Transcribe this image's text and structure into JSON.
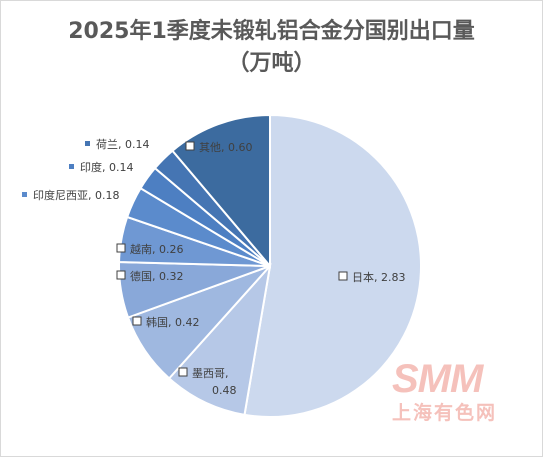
{
  "title_line1": "2025年1季度未锻轧铝合金分国别出口量",
  "title_line2": "（万吨）",
  "watermark": {
    "logo": "SMM",
    "text": "上海有色网"
  },
  "chart_data": {
    "type": "pie",
    "title": "2025年1季度未锻轧铝合金分国别出口量（万吨）",
    "slices": [
      {
        "label": "日本",
        "value": 2.83,
        "display": "日本, 2.83",
        "color": "#ccd9ee",
        "label_style": "inside-box"
      },
      {
        "label": "墨西哥",
        "value": 0.48,
        "display": "墨西哥, 0.48",
        "color": "#b6c8e7",
        "label_style": "inside-box"
      },
      {
        "label": "韩国",
        "value": 0.42,
        "display": "韩国, 0.42",
        "color": "#9fb8e0",
        "label_style": "inside-box"
      },
      {
        "label": "德国",
        "value": 0.32,
        "display": "德国, 0.32",
        "color": "#89a8d9",
        "label_style": "inside-box"
      },
      {
        "label": "越南",
        "value": 0.26,
        "display": "越南, 0.26",
        "color": "#6f98d3",
        "label_style": "inside-box"
      },
      {
        "label": "印度尼西亚",
        "value": 0.18,
        "display": "印度尼西亚, 0.18",
        "color": "#5b8bcc",
        "label_style": "outside"
      },
      {
        "label": "印度",
        "value": 0.14,
        "display": "印度, 0.14",
        "color": "#4d7fc2",
        "label_style": "outside"
      },
      {
        "label": "荷兰",
        "value": 0.14,
        "display": "荷兰, 0.14",
        "color": "#4575b3",
        "label_style": "outside"
      },
      {
        "label": "其他",
        "value": 0.6,
        "display": "其他, 0.60",
        "color": "#3c6b9f",
        "label_style": "inside-box"
      }
    ],
    "legend": "none"
  }
}
